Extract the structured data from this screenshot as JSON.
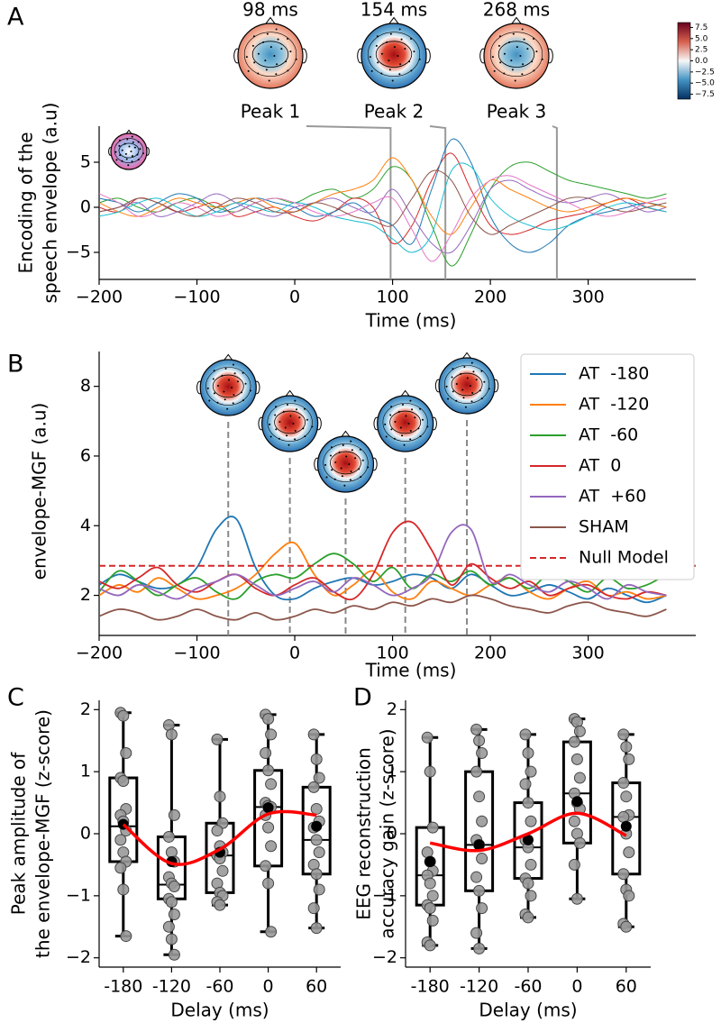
{
  "chart_data": [
    {
      "type": "line",
      "panel": "A",
      "xlabel": "Time (ms)",
      "ylabel": [
        "Encoding of the",
        "speech envelope (a.u)"
      ],
      "x": [
        -200,
        -180,
        -160,
        -140,
        -120,
        -100,
        -80,
        -60,
        -40,
        -20,
        0,
        20,
        40,
        60,
        80,
        100,
        120,
        140,
        160,
        180,
        200,
        220,
        240,
        260,
        280,
        300,
        320,
        340,
        360,
        380
      ],
      "xlim": [
        -200,
        410
      ],
      "ylim": [
        -8,
        9
      ],
      "xticks": [
        {
          "value": -200,
          "label": "−200"
        },
        {
          "value": -100,
          "label": "−100"
        },
        0,
        100,
        200,
        300
      ],
      "yticks": [
        {
          "value": -5,
          "label": "−5"
        },
        0,
        5
      ],
      "series": [
        {
          "color": "#2ca02c",
          "values": [
            0.5,
            1,
            0,
            -0.5,
            0.5,
            1,
            0,
            -0.5,
            0.5,
            1,
            0.5,
            1.5,
            2,
            1,
            2,
            4.5,
            3,
            -2,
            -6.5,
            -3,
            2,
            4.5,
            5,
            4,
            3,
            2.5,
            2,
            1.5,
            1,
            1.5
          ]
        },
        {
          "color": "#d62728",
          "values": [
            0,
            -0.5,
            1,
            0.5,
            -0.5,
            0,
            0.5,
            -1,
            -0.5,
            0,
            -1,
            -1.5,
            -0.5,
            1,
            0,
            -4,
            -2,
            3,
            6,
            2,
            -2,
            -3,
            -2.5,
            -1.5,
            -1,
            -0.5,
            0.5,
            1,
            0,
            -0.5
          ]
        },
        {
          "color": "#1f77b4",
          "values": [
            1,
            0.5,
            -0.5,
            0.5,
            1.5,
            1,
            -0.5,
            0,
            1,
            0.5,
            0,
            -1,
            -0.5,
            0.5,
            -1,
            -2,
            -4,
            2,
            7.5,
            5,
            -1,
            -4,
            -5,
            -4,
            -2,
            -1,
            -0.5,
            0,
            0.5,
            0
          ]
        },
        {
          "color": "#9467bd",
          "values": [
            -0.5,
            0,
            0.5,
            -1,
            -0.5,
            0.5,
            1.5,
            0.5,
            -0.5,
            -1,
            0,
            0.5,
            1,
            0,
            -0.5,
            2,
            -1,
            -4,
            -5,
            -2,
            2,
            3,
            2,
            1,
            0.5,
            1,
            1.5,
            0.5,
            -0.5,
            0
          ]
        },
        {
          "color": "#ff7f0e",
          "values": [
            0.5,
            -0.5,
            -1,
            0,
            1,
            0.5,
            0,
            0.5,
            1,
            0,
            -0.5,
            0.5,
            1.5,
            2,
            3,
            5.5,
            3,
            -1,
            -3,
            0,
            3,
            2,
            1,
            0,
            -0.5,
            0,
            0.5,
            1,
            0.5,
            0
          ]
        },
        {
          "color": "#17becf",
          "values": [
            -1,
            -0.5,
            0.5,
            1,
            0,
            -1,
            -0.5,
            0.5,
            0,
            -0.5,
            0.5,
            0,
            -1,
            -1.5,
            -2,
            -3.5,
            -5,
            -3,
            4,
            4.5,
            1,
            -1,
            -2,
            -2.5,
            -2,
            -1,
            0,
            0.5,
            0,
            -0.5
          ]
        },
        {
          "color": "#e377c2",
          "values": [
            1.5,
            0.5,
            -1,
            -0.5,
            0.5,
            0,
            -1,
            -0.5,
            0.5,
            1,
            0.5,
            -0.5,
            -1,
            -0.5,
            0.5,
            1,
            -2.5,
            -6,
            -3,
            1,
            3,
            3.5,
            2.5,
            1.5,
            0.5,
            -0.5,
            -1,
            -0.5,
            0.5,
            1
          ]
        },
        {
          "color": "#8c564b",
          "values": [
            -0.5,
            0,
            1,
            0.5,
            -0.5,
            -1,
            0,
            1,
            0.5,
            -0.5,
            -0.5,
            0.5,
            0,
            -1,
            -1.5,
            -2,
            1,
            4,
            3,
            -1,
            -3,
            -2,
            -1,
            0,
            1,
            1,
            0,
            -0.5,
            0,
            0.5
          ]
        }
      ],
      "peaks": [
        {
          "x": 98,
          "label": "98 ms",
          "name": "Peak 1"
        },
        {
          "x": 154,
          "label": "154 ms",
          "name": "Peak 2"
        },
        {
          "x": 268,
          "label": "268 ms",
          "name": "Peak 3"
        }
      ],
      "colorbar": {
        "lim": [
          -8.6,
          8.6
        ],
        "ticks": [
          {
            "value": 7.5,
            "label": "7.5"
          },
          {
            "value": 5,
            "label": "5.0"
          },
          {
            "value": 2.5,
            "label": "2.5"
          },
          {
            "value": 0,
            "label": "0.0"
          },
          {
            "value": -2.5,
            "label": "−2.5"
          },
          {
            "value": -5,
            "label": "−5.0"
          },
          {
            "value": -7.5,
            "label": "−7.5"
          }
        ]
      }
    },
    {
      "type": "line",
      "panel": "B",
      "xlabel": "Time (ms)",
      "ylabel": [
        "envelope-MGF (a.u)"
      ],
      "x": [
        -200,
        -180,
        -160,
        -140,
        -120,
        -100,
        -80,
        -60,
        -40,
        -20,
        0,
        20,
        40,
        60,
        80,
        100,
        120,
        140,
        160,
        180,
        200,
        220,
        240,
        260,
        280,
        300,
        320,
        340,
        360,
        380
      ],
      "xlim": [
        -200,
        410
      ],
      "ylim": [
        0.85,
        9
      ],
      "xticks": [
        {
          "value": -200,
          "label": "−200"
        },
        {
          "value": -100,
          "label": "−100"
        },
        0,
        100,
        200,
        300
      ],
      "yticks": [
        2,
        4,
        6,
        8
      ],
      "legend": "upper right",
      "series": [
        {
          "name": "AT  -180",
          "color": "#1f77b4",
          "values": [
            2.3,
            2.6,
            2.4,
            2.2,
            2.3,
            2.8,
            3.9,
            4.2,
            2.8,
            2.0,
            1.9,
            2.2,
            2.4,
            2.5,
            2.3,
            2.4,
            2.6,
            2.5,
            2.2,
            2.6,
            2.3,
            2.0,
            2.1,
            2.3,
            2.1,
            1.9,
            2.2,
            2.0,
            1.8,
            2.0
          ]
        },
        {
          "name": "AT  -120",
          "color": "#ff7f0e",
          "values": [
            2.0,
            2.3,
            2.1,
            2.5,
            2.2,
            1.9,
            2.0,
            2.2,
            2.6,
            3.2,
            3.5,
            2.6,
            2.0,
            2.3,
            2.7,
            2.1,
            1.9,
            2.4,
            2.2,
            2.0,
            2.3,
            2.5,
            2.1,
            1.9,
            2.2,
            2.4,
            2.0,
            2.1,
            1.9,
            2.0
          ]
        },
        {
          "name": "AT  -60",
          "color": "#2ca02c",
          "values": [
            2.1,
            2.7,
            2.4,
            2.0,
            2.3,
            2.5,
            2.1,
            1.9,
            2.4,
            2.6,
            2.5,
            2.9,
            3.2,
            2.9,
            2.4,
            2.8,
            2.2,
            2.6,
            2.4,
            2.7,
            2.3,
            2.5,
            2.2,
            2.6,
            2.4,
            2.1,
            2.5,
            2.2,
            2.3,
            2.6
          ]
        },
        {
          "name": "AT  0",
          "color": "#d62728",
          "values": [
            2.4,
            2.2,
            2.5,
            2.8,
            2.3,
            2.1,
            2.4,
            2.6,
            2.2,
            2.0,
            2.3,
            2.5,
            2.1,
            1.9,
            2.6,
            3.8,
            4.1,
            3.3,
            2.3,
            2.9,
            2.5,
            2.2,
            2.4,
            2.0,
            2.2,
            2.3,
            2.0,
            1.9,
            2.1,
            2.0
          ]
        },
        {
          "name": "AT  +60",
          "color": "#9467bd",
          "values": [
            2.2,
            2.0,
            2.3,
            2.1,
            1.9,
            2.2,
            2.4,
            2.6,
            2.3,
            2.0,
            2.2,
            2.4,
            2.1,
            2.5,
            2.3,
            2.0,
            2.2,
            2.6,
            3.8,
            3.9,
            2.4,
            2.6,
            2.3,
            2.1,
            2.4,
            2.2,
            1.9,
            2.3,
            2.1,
            2.0
          ]
        },
        {
          "name": "SHAM",
          "color": "#8c564b",
          "values": [
            1.4,
            1.6,
            1.5,
            1.3,
            1.4,
            1.6,
            1.4,
            1.3,
            1.5,
            1.3,
            1.4,
            1.6,
            1.5,
            1.7,
            1.6,
            1.8,
            1.7,
            1.9,
            1.8,
            2.0,
            1.9,
            1.7,
            1.6,
            1.5,
            1.7,
            1.8,
            1.6,
            1.5,
            1.4,
            1.6
          ]
        }
      ],
      "reference_line": {
        "name": "Null Model",
        "color": "#d62728",
        "value": 2.85
      },
      "peak_lines": [
        -68,
        -5,
        52,
        113,
        176
      ]
    },
    {
      "type": "box",
      "panel": "C",
      "xlabel": "Delay (ms)",
      "ylabel": [
        "Peak amplitude of",
        "the envelope-MGF (z-score)"
      ],
      "categories": [
        "-180",
        "-120",
        "-60",
        "0",
        "60"
      ],
      "ylim": [
        -2.15,
        2.15
      ],
      "yticks": [
        {
          "value": -2,
          "label": "−2"
        },
        {
          "value": -1,
          "label": "−1"
        },
        0,
        1,
        2
      ],
      "boxes": [
        {
          "whisker_low": -1.65,
          "q1": -0.45,
          "median": 0.12,
          "q3": 0.9,
          "whisker_high": 1.95,
          "mean": 0.15,
          "points": [
            1.95,
            1.9,
            1.3,
            0.9,
            0.85,
            0.4,
            0.3,
            0.2,
            0.05,
            -0.1,
            -0.3,
            -0.45,
            -0.55,
            -0.9,
            -1.65
          ]
        },
        {
          "whisker_low": -1.95,
          "q1": -1.05,
          "median": -0.82,
          "q3": -0.05,
          "whisker_high": 1.75,
          "mean": -0.45,
          "points": [
            1.75,
            1.6,
            0.3,
            -0.05,
            -0.3,
            -0.45,
            -0.7,
            -0.8,
            -0.85,
            -1.05,
            -1.1,
            -1.3,
            -1.5,
            -1.7,
            -1.95
          ]
        },
        {
          "whisker_low": -1.15,
          "q1": -0.95,
          "median": -0.35,
          "q3": 0.17,
          "whisker_high": 1.52,
          "mean": -0.3,
          "points": [
            1.52,
            0.6,
            0.17,
            0.05,
            -0.2,
            -0.3,
            -0.35,
            -0.4,
            -0.6,
            -0.8,
            -0.95,
            -1.0,
            -1.1,
            -1.15
          ]
        },
        {
          "whisker_low": -1.58,
          "q1": -0.52,
          "median": 0.43,
          "q3": 1.02,
          "whisker_high": 1.92,
          "mean": 0.42,
          "points": [
            1.92,
            1.85,
            1.6,
            1.3,
            1.02,
            0.8,
            0.5,
            0.45,
            0.43,
            0.3,
            0.1,
            -0.2,
            -0.52,
            -0.8,
            -1.58
          ]
        },
        {
          "whisker_low": -1.52,
          "q1": -0.65,
          "median": -0.1,
          "q3": 0.75,
          "whisker_high": 1.6,
          "mean": 0.12,
          "points": [
            1.6,
            1.2,
            0.9,
            0.75,
            0.4,
            0.2,
            0.1,
            -0.1,
            -0.3,
            -0.5,
            -0.65,
            -0.9,
            -1.2,
            -1.52
          ]
        }
      ],
      "fit": {
        "color": "#ff0000",
        "values": [
          0.15,
          -0.48,
          -0.25,
          0.32,
          0.3
        ]
      }
    },
    {
      "type": "box",
      "panel": "D",
      "xlabel": "Delay (ms)",
      "ylabel": [
        "EEG reconstruction",
        "accuracy gain (z-score)"
      ],
      "categories": [
        "-180",
        "-120",
        "-60",
        "0",
        "60"
      ],
      "ylim": [
        -2.15,
        2.15
      ],
      "yticks": [
        {
          "value": -2,
          "label": "−2"
        },
        {
          "value": -1,
          "label": "−1"
        },
        0,
        1,
        2
      ],
      "boxes": [
        {
          "whisker_low": -1.8,
          "q1": -1.15,
          "median": -0.67,
          "q3": 0.1,
          "whisker_high": 1.55,
          "mean": -0.45,
          "points": [
            1.55,
            1.0,
            0.1,
            -0.3,
            -0.45,
            -0.6,
            -0.67,
            -0.8,
            -1.0,
            -1.15,
            -1.2,
            -1.4,
            -1.75,
            -1.8
          ]
        },
        {
          "whisker_low": -1.85,
          "q1": -0.92,
          "median": -0.18,
          "q3": 1.0,
          "whisker_high": 1.68,
          "mean": -0.18,
          "points": [
            1.68,
            1.5,
            1.3,
            1.0,
            0.6,
            0.2,
            -0.1,
            -0.18,
            -0.4,
            -0.7,
            -0.92,
            -1.2,
            -1.6,
            -1.85
          ]
        },
        {
          "whisker_low": -1.35,
          "q1": -0.72,
          "median": -0.22,
          "q3": 0.5,
          "whisker_high": 1.6,
          "mean": -0.1,
          "points": [
            1.6,
            1.3,
            1.0,
            0.8,
            0.5,
            0.2,
            -0.1,
            -0.22,
            -0.5,
            -0.72,
            -0.8,
            -1.0,
            -1.3,
            -1.35
          ]
        },
        {
          "whisker_low": -1.05,
          "q1": -0.15,
          "median": 0.65,
          "q3": 1.48,
          "whisker_high": 1.85,
          "mean": 0.52,
          "points": [
            1.85,
            1.8,
            1.65,
            1.48,
            1.2,
            0.9,
            0.65,
            0.5,
            0.4,
            0.2,
            0.0,
            -0.15,
            -0.5,
            -1.05
          ]
        },
        {
          "whisker_low": -1.5,
          "q1": -0.65,
          "median": 0.27,
          "q3": 0.82,
          "whisker_high": 1.6,
          "mean": 0.12,
          "points": [
            1.6,
            1.4,
            1.2,
            0.82,
            0.6,
            0.3,
            0.27,
            0.0,
            -0.3,
            -0.65,
            -0.9,
            -1.0,
            -1.45,
            -1.5
          ]
        }
      ],
      "fit": {
        "color": "#ff0000",
        "values": [
          -0.15,
          -0.27,
          0.0,
          0.33,
          -0.03
        ]
      }
    }
  ]
}
